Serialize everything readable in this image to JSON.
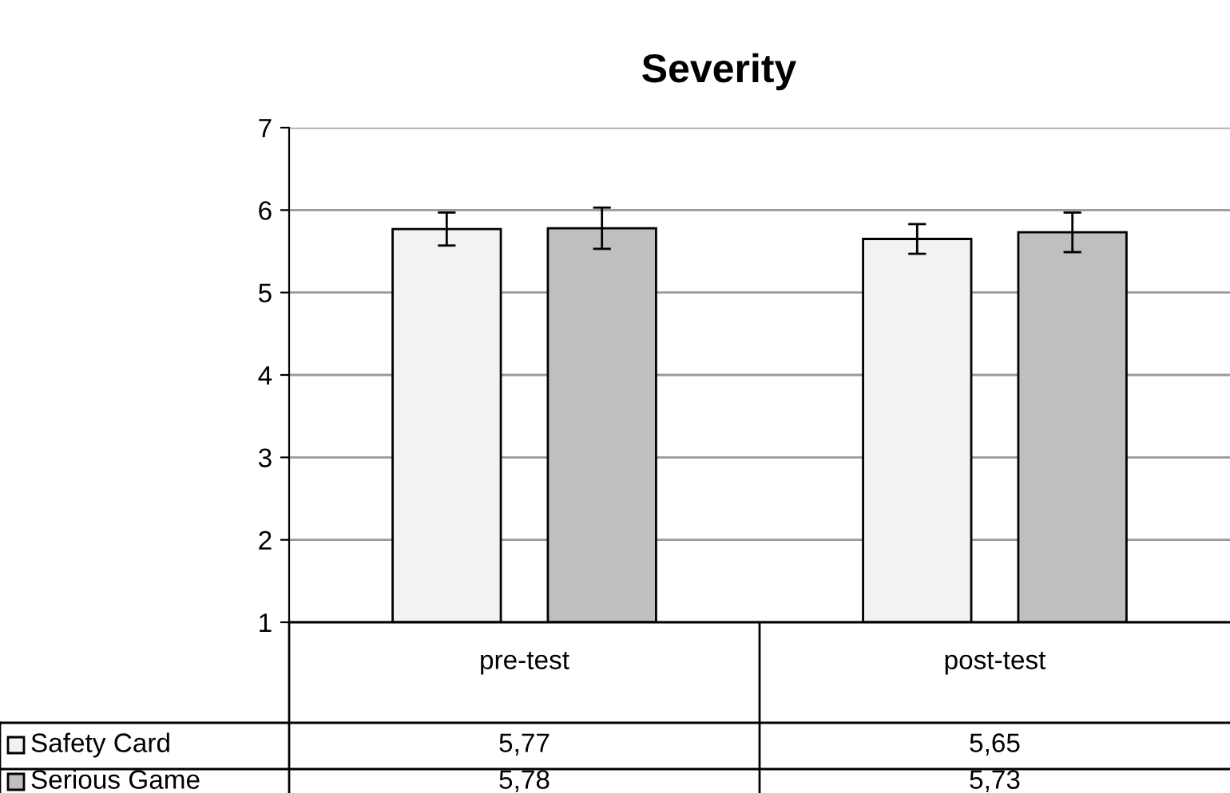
{
  "chart_data": {
    "type": "bar",
    "title": "Severity",
    "categories": [
      "pre-test",
      "post-test"
    ],
    "series": [
      {
        "name": "Safety Card",
        "color": "#f2f2f2",
        "values": [
          5.77,
          5.65
        ],
        "errors": [
          0.2,
          0.18
        ],
        "value_labels": [
          "5,77",
          "5,65"
        ]
      },
      {
        "name": "Serious Game",
        "color": "#bfbfbf",
        "values": [
          5.78,
          5.73
        ],
        "errors": [
          0.25,
          0.24
        ],
        "value_labels": [
          "5,78",
          "5,73"
        ]
      }
    ],
    "ylim": [
      1,
      7
    ],
    "yticks": [
      1,
      2,
      3,
      4,
      5,
      6,
      7
    ],
    "grid": "y",
    "legend": "bottom left"
  }
}
